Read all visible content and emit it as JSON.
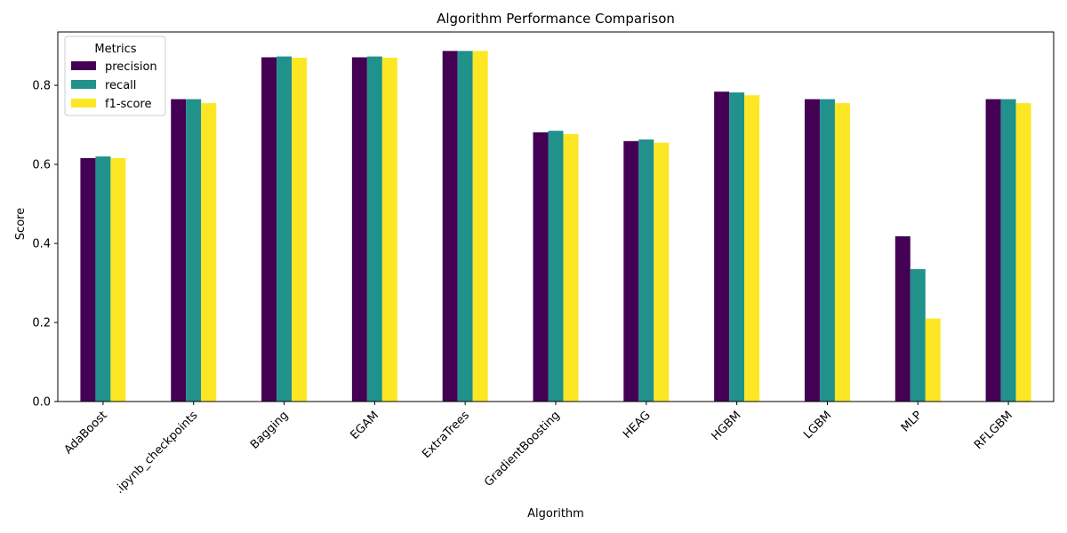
{
  "chart_data": {
    "type": "bar",
    "title": "Algorithm Performance Comparison",
    "xlabel": "Algorithm",
    "ylabel": "Score",
    "ylim": [
      0,
      0.935
    ],
    "yticks": [
      "0.0",
      "0.2",
      "0.4",
      "0.6",
      "0.8"
    ],
    "ytick_values": [
      0,
      0.2,
      0.4,
      0.6,
      0.8
    ],
    "categories": [
      "AdaBoost",
      ".ipynb_checkpoints",
      "Bagging",
      "EGAM",
      "ExtraTrees",
      "GradientBoosting",
      "HEAG",
      "HGBM",
      "LGBM",
      "MLP",
      "RFLGBM"
    ],
    "series": [
      {
        "name": "precision",
        "color": "#440154",
        "values": [
          0.616,
          0.765,
          0.871,
          0.871,
          0.887,
          0.681,
          0.659,
          0.784,
          0.765,
          0.418,
          0.765
        ]
      },
      {
        "name": "recall",
        "color": "#21918c",
        "values": [
          0.62,
          0.765,
          0.873,
          0.873,
          0.887,
          0.685,
          0.663,
          0.782,
          0.765,
          0.335,
          0.765
        ]
      },
      {
        "name": "f1-score",
        "color": "#fde725",
        "values": [
          0.616,
          0.755,
          0.87,
          0.87,
          0.887,
          0.677,
          0.655,
          0.775,
          0.755,
          0.21,
          0.755
        ]
      }
    ],
    "legend": {
      "title": "Metrics",
      "placement": "top-left"
    },
    "grid": false
  }
}
